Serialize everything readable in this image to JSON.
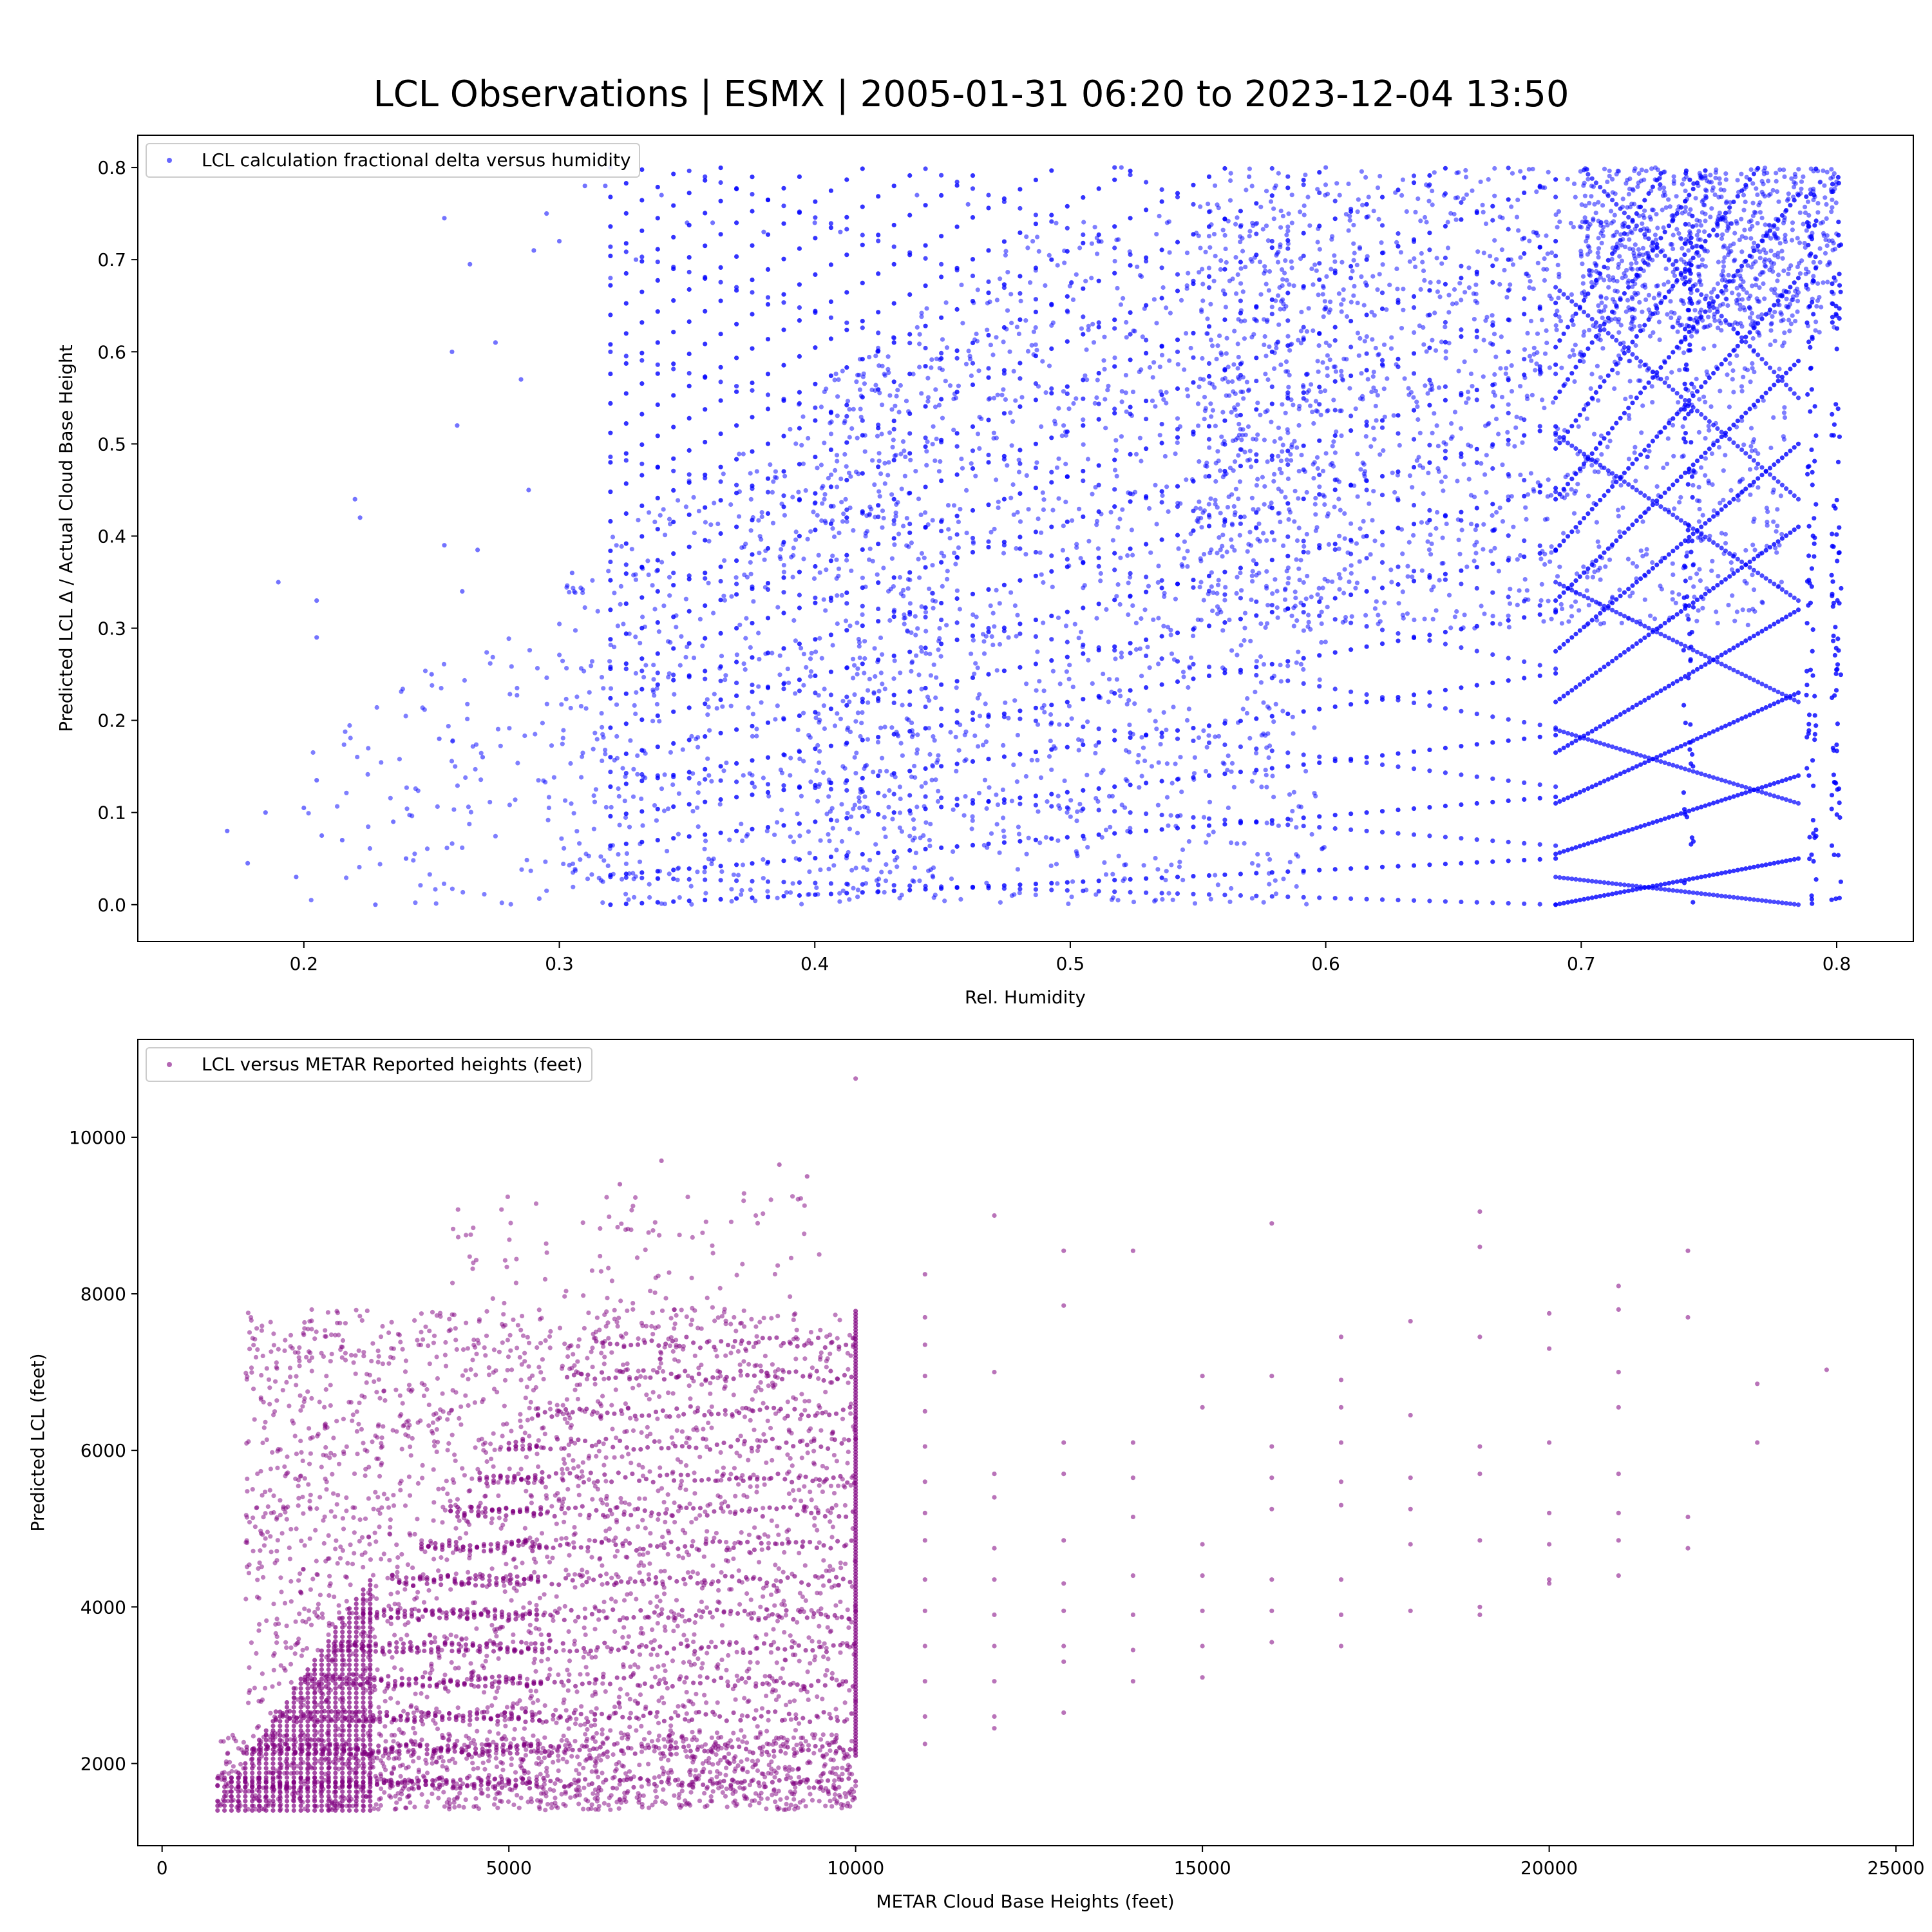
{
  "title": "LCL Observations | ESMX | 2005-01-31 06:20 to 2023-12-04 13:50",
  "chart_data": [
    {
      "type": "scatter",
      "xlabel": "Rel. Humidity",
      "ylabel": "Predicted LCL Δ / Actual Cloud Base Height",
      "xlim": [
        0.135,
        0.83
      ],
      "ylim": [
        -0.04,
        0.835
      ],
      "xticks": [
        "0.2",
        "0.3",
        "0.4",
        "0.5",
        "0.6",
        "0.7",
        "0.8"
      ],
      "yticks": [
        "0.0",
        "0.1",
        "0.2",
        "0.3",
        "0.4",
        "0.5",
        "0.6",
        "0.7",
        "0.8"
      ],
      "legend": "upper-left",
      "color": "#0000ff",
      "series": [
        {
          "name": "LCL calculation fractional delta versus humidity",
          "points": [
            [
              0.17,
              0.08
            ],
            [
              0.178,
              0.045
            ],
            [
              0.185,
              0.1
            ],
            [
              0.19,
              0.35
            ],
            [
              0.197,
              0.03
            ],
            [
              0.2,
              0.105
            ],
            [
              0.205,
              0.33
            ],
            [
              0.205,
              0.29
            ],
            [
              0.205,
              0.135
            ],
            [
              0.207,
              0.075
            ],
            [
              0.215,
              0.07
            ],
            [
              0.22,
              0.44
            ],
            [
              0.222,
              0.42
            ],
            [
              0.228,
              0.0
            ],
            [
              0.235,
              0.09
            ],
            [
              0.24,
              0.05
            ],
            [
              0.25,
              0.25
            ],
            [
              0.253,
              0.18
            ],
            [
              0.255,
              0.745
            ],
            [
              0.255,
              0.39
            ],
            [
              0.258,
              0.6
            ],
            [
              0.26,
              0.52
            ],
            [
              0.262,
              0.34
            ],
            [
              0.265,
              0.695
            ],
            [
              0.268,
              0.385
            ],
            [
              0.27,
              0.16
            ],
            [
              0.275,
              0.61
            ],
            [
              0.285,
              0.57
            ],
            [
              0.288,
              0.45
            ],
            [
              0.29,
              0.71
            ],
            [
              0.295,
              0.75
            ],
            [
              0.3,
              0.72
            ],
            [
              0.305,
              0.36
            ],
            [
              0.31,
              0.78
            ],
            [
              0.318,
              0.78
            ],
            [
              0.32,
              0.68
            ],
            [
              0.33,
              0.7
            ],
            [
              0.34,
              0.77
            ],
            [
              0.35,
              0.74
            ],
            [
              0.36,
              0.74
            ],
            [
              0.38,
              0.73
            ],
            [
              0.4,
              0.74
            ],
            [
              0.41,
              0.73
            ],
            [
              0.44,
              0.77
            ],
            [
              0.46,
              0.76
            ],
            [
              0.52,
              0.8
            ],
            [
              0.57,
              0.79
            ],
            [
              0.6,
              0.8
            ]
          ],
          "bands": [
            {
              "x0": 0.2,
              "x1": 0.34,
              "y0": 0.0,
              "y1": 0.3,
              "count": 180
            },
            {
              "x0": 0.3,
              "x1": 0.45,
              "y0": 0.0,
              "y1": 0.6,
              "count": 700
            },
            {
              "x0": 0.4,
              "x1": 0.6,
              "y0": 0.0,
              "y1": 0.75,
              "count": 1300
            },
            {
              "x0": 0.55,
              "x1": 0.78,
              "y0": 0.3,
              "y1": 0.8,
              "count": 1500
            },
            {
              "x0": 0.7,
              "x1": 0.8,
              "y0": 0.62,
              "y1": 0.8,
              "count": 700
            }
          ],
          "fans": [
            {
              "x0": 0.32,
              "x1": 0.69,
              "n": 26,
              "y_start": 0.0,
              "spacing": 0.032
            },
            {
              "x0": 0.69,
              "x1": 0.785,
              "n": 12,
              "y_start": 0.0,
              "spacing": 0.055
            }
          ]
        }
      ]
    },
    {
      "type": "scatter",
      "xlabel": "METAR Cloud Base Heights (feet)",
      "ylabel": "Predicted LCL (feet)",
      "xlim": [
        -350,
        25250
      ],
      "ylim": [
        950,
        11250
      ],
      "xticks": [
        "0",
        "5000",
        "10000",
        "15000",
        "20000",
        "25000"
      ],
      "yticks": [
        "2000",
        "4000",
        "6000",
        "8000",
        "10000"
      ],
      "legend": "upper-left",
      "color": "#800080",
      "series": [
        {
          "name": "LCL versus METAR Reported heights (feet)",
          "levels": [
            1750,
            2180,
            2600,
            3050,
            3480,
            3900,
            4340,
            4780,
            5220,
            5650,
            6080,
            6500,
            6950,
            7380
          ],
          "points": [
            [
              10000,
              10750
            ],
            [
              7200,
              9700
            ],
            [
              8900,
              9650
            ],
            [
              9300,
              9500
            ],
            [
              6600,
              9400
            ],
            [
              12000,
              9000
            ],
            [
              19000,
              9050
            ],
            [
              16000,
              8900
            ],
            [
              13000,
              8550
            ],
            [
              14000,
              8550
            ],
            [
              22000,
              8550
            ],
            [
              19000,
              8600
            ],
            [
              21000,
              8100
            ],
            [
              11000,
              8250
            ],
            [
              20000,
              7750
            ],
            [
              21000,
              7800
            ],
            [
              22000,
              7700
            ],
            [
              13000,
              7850
            ],
            [
              18000,
              7650
            ],
            [
              17000,
              7450
            ],
            [
              19000,
              7450
            ],
            [
              24000,
              7030
            ],
            [
              23000,
              6850
            ],
            [
              12000,
              7000
            ],
            [
              15000,
              6950
            ],
            [
              16000,
              6950
            ],
            [
              17000,
              6900
            ],
            [
              18000,
              6450
            ],
            [
              20000,
              7300
            ],
            [
              21000,
              7000
            ],
            [
              15000,
              6550
            ],
            [
              17000,
              6550
            ],
            [
              21000,
              6550
            ],
            [
              13000,
              6100
            ],
            [
              14000,
              6100
            ],
            [
              16000,
              6050
            ],
            [
              17000,
              6100
            ],
            [
              19000,
              6050
            ],
            [
              20000,
              6100
            ],
            [
              23000,
              6100
            ],
            [
              12000,
              5700
            ],
            [
              13000,
              5700
            ],
            [
              14000,
              5650
            ],
            [
              16000,
              5650
            ],
            [
              17000,
              5600
            ],
            [
              18000,
              5650
            ],
            [
              19000,
              5700
            ],
            [
              21000,
              5700
            ],
            [
              14000,
              5150
            ],
            [
              16000,
              5250
            ],
            [
              17000,
              5300
            ],
            [
              18000,
              5250
            ],
            [
              20000,
              5200
            ],
            [
              21000,
              5200
            ],
            [
              22000,
              5150
            ],
            [
              13000,
              4850
            ],
            [
              15000,
              4800
            ],
            [
              18000,
              4800
            ],
            [
              19000,
              4850
            ],
            [
              20000,
              4800
            ],
            [
              21000,
              4850
            ],
            [
              22000,
              4750
            ],
            [
              12000,
              4750
            ],
            [
              14000,
              4400
            ],
            [
              15000,
              4400
            ],
            [
              16000,
              4350
            ],
            [
              17000,
              4350
            ],
            [
              20000,
              4350
            ],
            [
              21000,
              4400
            ],
            [
              11000,
              4850
            ],
            [
              11000,
              5200
            ],
            [
              11000,
              5600
            ],
            [
              11000,
              6050
            ],
            [
              11000,
              6500
            ],
            [
              11000,
              6950
            ],
            [
              11000,
              7350
            ],
            [
              11000,
              7700
            ],
            [
              12000,
              5400
            ],
            [
              12000,
              4350
            ],
            [
              12000,
              3900
            ],
            [
              12000,
              3500
            ],
            [
              12000,
              3050
            ],
            [
              12000,
              2600
            ],
            [
              12000,
              2450
            ],
            [
              11000,
              2250
            ],
            [
              11000,
              2600
            ],
            [
              11000,
              3050
            ],
            [
              11000,
              3500
            ],
            [
              11000,
              3950
            ],
            [
              11000,
              4350
            ],
            [
              13000,
              3500
            ],
            [
              13000,
              3300
            ],
            [
              13000,
              2650
            ],
            [
              14000,
              3050
            ],
            [
              14000,
              3450
            ],
            [
              14000,
              3900
            ],
            [
              15000,
              3100
            ],
            [
              15000,
              3500
            ],
            [
              15000,
              3950
            ],
            [
              16000,
              3550
            ],
            [
              16000,
              3950
            ],
            [
              17000,
              3500
            ],
            [
              17000,
              3900
            ],
            [
              18000,
              3950
            ],
            [
              19000,
              3900
            ],
            [
              19000,
              4000
            ],
            [
              20000,
              4300
            ],
            [
              13000,
              4300
            ],
            [
              13000,
              3950
            ]
          ],
          "bands": [
            {
              "x0": 800,
              "x1": 10000,
              "y0": 1400,
              "y1": 2400,
              "count": 1200
            },
            {
              "x0": 1200,
              "x1": 10000,
              "y0": 2400,
              "y1": 7800,
              "count": 2200
            },
            {
              "x0": 4000,
              "x1": 9500,
              "y0": 7000,
              "y1": 9300,
              "count": 140
            }
          ]
        }
      ]
    }
  ]
}
